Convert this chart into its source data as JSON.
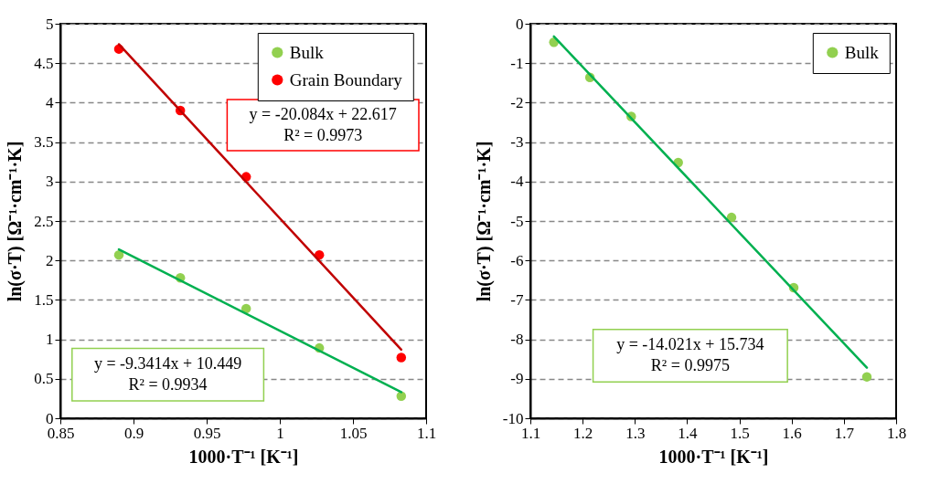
{
  "chart_data": [
    {
      "type": "scatter",
      "xlabel": "1000·T⁻¹   [K⁻¹]",
      "ylabel": "ln(σ·T)   [Ω⁻¹·cm⁻¹·K]",
      "xlim": [
        0.85,
        1.1
      ],
      "xticks": [
        0.85,
        0.9,
        0.95,
        1,
        1.05,
        1.1
      ],
      "ylim": [
        0,
        5
      ],
      "yticks": [
        0,
        0.5,
        1,
        1.5,
        2,
        2.5,
        3,
        3.5,
        4,
        4.5,
        5
      ],
      "grid": "y",
      "legend": "top right",
      "marker": "circle",
      "x": [
        0.89,
        0.932,
        0.977,
        1.027,
        1.083
      ],
      "series": [
        {
          "name": "Bulk",
          "color": "#92d050",
          "values": [
            2.07,
            1.78,
            1.39,
            0.89,
            0.28
          ]
        },
        {
          "name": "Grain Boundary",
          "color": "#ff0000",
          "values": [
            4.68,
            3.9,
            3.06,
            2.07,
            0.77
          ]
        },
        {
          "type": "line",
          "color": "#00b050",
          "marker": "none",
          "x": [
            0.89,
            1.083
          ],
          "values": [
            2.14,
            0.33
          ]
        },
        {
          "type": "line",
          "color": "#c00000",
          "marker": "none",
          "x": [
            0.89,
            1.083
          ],
          "values": [
            4.74,
            0.87
          ]
        }
      ],
      "annotations": [
        "y = -9.3414x + 10.449",
        "R² = 0.9934",
        "y = -20.084x + 22.617",
        "R² = 0.9973"
      ]
    },
    {
      "type": "scatter",
      "xlabel": "1000·T⁻¹   [K⁻¹]",
      "ylabel": "ln(σ·T)   [Ω⁻¹·cm⁻¹·K]",
      "xlim": [
        1.1,
        1.8
      ],
      "xticks": [
        1.1,
        1.2,
        1.3,
        1.4,
        1.5,
        1.6,
        1.7,
        1.8
      ],
      "ylim": [
        -10,
        0
      ],
      "yticks": [
        -10,
        -9,
        -8,
        -7,
        -6,
        -5,
        -4,
        -3,
        -2,
        -1,
        0
      ],
      "grid": "y",
      "legend": "top right",
      "marker": "circle",
      "x": [
        1.145,
        1.214,
        1.293,
        1.383,
        1.485,
        1.604,
        1.744
      ],
      "series": [
        {
          "name": "Bulk",
          "color": "#92d050",
          "values": [
            -0.47,
            -1.36,
            -2.35,
            -3.52,
            -4.91,
            -6.69,
            -8.95
          ]
        },
        {
          "type": "line",
          "color": "#00b050",
          "marker": "none",
          "x": [
            1.145,
            1.744
          ],
          "values": [
            -0.32,
            -8.72
          ]
        }
      ],
      "annotations": [
        "y = -14.021x + 15.734",
        "R² = 0.9975"
      ]
    }
  ]
}
